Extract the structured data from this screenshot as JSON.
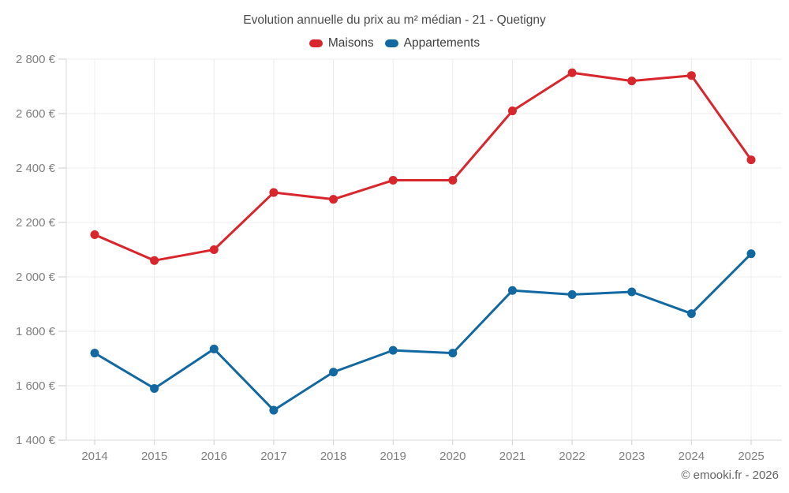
{
  "header": {
    "title": "Evolution annuelle du prix au m² médian - 21 - Quetigny"
  },
  "legend": {
    "items": [
      {
        "label": "Maisons",
        "color": "#d8262c"
      },
      {
        "label": "Appartements",
        "color": "#1268a0"
      }
    ]
  },
  "footer": {
    "copyright": "© emooki.fr - 2026"
  },
  "colors": {
    "background": "#ffffff",
    "grid": "#ececec",
    "axis": "#d9d9d9",
    "tick": "#cfcfcf",
    "tick_label": "#7f7f7f",
    "maisons": "#d8262c",
    "appartements": "#1268a0"
  },
  "chart_data": {
    "type": "line",
    "title": "Evolution annuelle du prix au m² médian - 21 - Quetigny",
    "categories": [
      "2014",
      "2015",
      "2016",
      "2017",
      "2018",
      "2019",
      "2020",
      "2021",
      "2022",
      "2023",
      "2024",
      "2025"
    ],
    "series": [
      {
        "name": "Maisons",
        "color": "#d8262c",
        "values": [
          2155,
          2060,
          2100,
          2310,
          2285,
          2355,
          2355,
          2610,
          2750,
          2720,
          2740,
          2430
        ]
      },
      {
        "name": "Appartements",
        "color": "#1268a0",
        "values": [
          1720,
          1590,
          1735,
          1510,
          1650,
          1730,
          1720,
          1950,
          1935,
          1945,
          1865,
          2085
        ]
      }
    ],
    "xlabel": "",
    "ylabel": "",
    "ylim": [
      1400,
      2800
    ],
    "y_ticks": [
      1400,
      1600,
      1800,
      2000,
      2200,
      2400,
      2600,
      2800
    ],
    "y_tick_labels": [
      "1 400 €",
      "1 600 €",
      "1 800 €",
      "2 000 €",
      "2 200 €",
      "2 400 €",
      "2 600 €",
      "2 800 €"
    ],
    "grid": true,
    "legend_position": "top",
    "marker": "circle"
  }
}
